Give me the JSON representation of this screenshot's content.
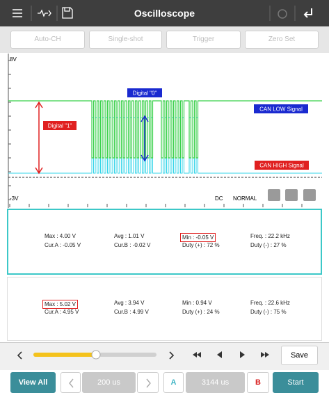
{
  "header": {
    "title": "Oscilloscope"
  },
  "toolbar": {
    "buttons": [
      "Auto-CH",
      "Single-shot",
      "Trigger",
      "Zero Set"
    ]
  },
  "scope": {
    "top_label": "8V",
    "bottom_label": "-3V",
    "coupling": "DC",
    "mode": "NORMAL",
    "annotations": {
      "digital_0": "Digital \"0\"",
      "digital_1": "Digital \"1\"",
      "can_low": "CAN LOW Signal",
      "can_high": "CAN HIGH Signal"
    }
  },
  "panels": [
    {
      "rows": [
        [
          "Max : 4.00 V",
          "Avg : 1.01 V",
          "Min : -0.05 V",
          "Freq. : 22.2 kHz"
        ],
        [
          "Cur.A : -0.05 V",
          "Cur.B : -0.02 V",
          "Duty (+) : 72 %",
          "Duty (-) : 27 %"
        ]
      ]
    },
    {
      "rows": [
        [
          "Max : 5.02 V",
          "Avg : 3.94 V",
          "Min : 0.94 V",
          "Freq. : 22.6 kHz"
        ],
        [
          "Cur.A : 4.95 V",
          "Cur.B : 4.99 V",
          "Duty (+) : 24 %",
          "Duty (-) : 75 %"
        ]
      ]
    }
  ],
  "controls": {
    "save": "Save",
    "view_all": "View All",
    "time_div": "200 us",
    "cursor_a": "A",
    "cursor_span": "3144 us",
    "cursor_b": "B",
    "start": "Start"
  }
}
